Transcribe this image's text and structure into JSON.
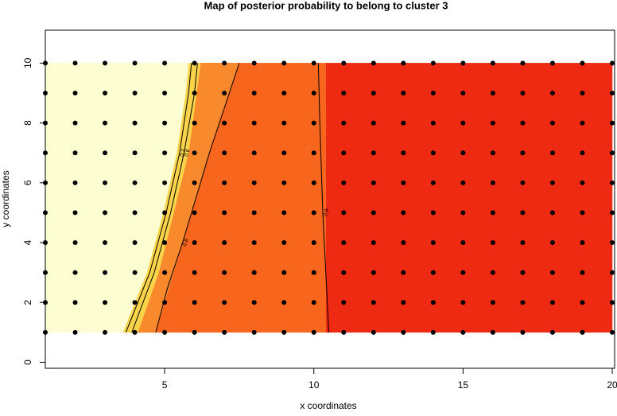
{
  "chart_data": {
    "type": "contour-map",
    "title": "Map of posterior probability to belong to cluster  3",
    "x_label": "x coordinates",
    "y_label": "y coordinates",
    "xlim": [
      1,
      20
    ],
    "ylim": [
      -0.2,
      11.1
    ],
    "xticks": [
      5,
      10,
      15,
      20
    ],
    "yticks": [
      0,
      2,
      4,
      6,
      8,
      10
    ],
    "regions": [
      {
        "color": "#ef2a12",
        "x": [
          10.4,
          20,
          20,
          10.4
        ],
        "y": [
          1,
          1,
          10,
          10
        ]
      },
      {
        "color": "#f8661d",
        "x": [
          4.1,
          10.4,
          10.4,
          6.2,
          5.8,
          5.3,
          4.8
        ],
        "y": [
          1,
          1,
          10,
          10,
          7,
          5,
          3
        ]
      },
      {
        "color": "#f8892c",
        "x": [
          4.1,
          4.7,
          5.6,
          6.5,
          7.5,
          6.2,
          5.8,
          5.3,
          4.8
        ],
        "y": [
          1,
          1,
          4,
          7,
          10,
          10,
          7,
          5,
          3
        ]
      },
      {
        "color": "#f9d44a",
        "x": [
          3.6,
          4.1,
          4.8,
          5.3,
          5.8,
          6.2,
          5.8,
          5.7,
          5.4,
          4.95,
          4.4
        ],
        "y": [
          1,
          1,
          3,
          5,
          7,
          10,
          10,
          9,
          7,
          5,
          3
        ]
      },
      {
        "color": "#fdfdd2",
        "x": [
          1,
          3.6,
          4.4,
          4.95,
          5.4,
          5.7,
          5.8,
          1
        ],
        "y": [
          1,
          1,
          3,
          5,
          7,
          9,
          10,
          10
        ]
      }
    ],
    "contours": [
      {
        "level": 0.2,
        "x": [
          3.7,
          4.5,
          5.05,
          5.5,
          5.8,
          5.9
        ],
        "y": [
          1,
          3,
          5,
          7,
          9,
          10
        ]
      },
      {
        "level": 0.6,
        "x": [
          3.9,
          4.65,
          5.2,
          5.65,
          6.0,
          6.1
        ],
        "y": [
          1,
          3,
          5,
          7,
          9,
          10
        ]
      },
      {
        "level": 0.8,
        "x": [
          4.7,
          5.1,
          5.6,
          6.5,
          7.5
        ],
        "y": [
          1,
          2.5,
          4,
          7,
          10
        ]
      },
      {
        "level": 0.9,
        "x": [
          10.5,
          10.4,
          10.3,
          10.2,
          10.15
        ],
        "y": [
          1,
          3,
          5,
          8,
          10
        ]
      }
    ],
    "points": {
      "x": [
        1,
        2,
        3,
        4,
        5,
        6,
        7,
        8,
        9,
        10,
        11,
        12,
        13,
        14,
        15,
        16,
        17,
        18,
        19,
        20
      ],
      "y": [
        1,
        2,
        3,
        4,
        5,
        6,
        7,
        8,
        9,
        10
      ]
    }
  }
}
